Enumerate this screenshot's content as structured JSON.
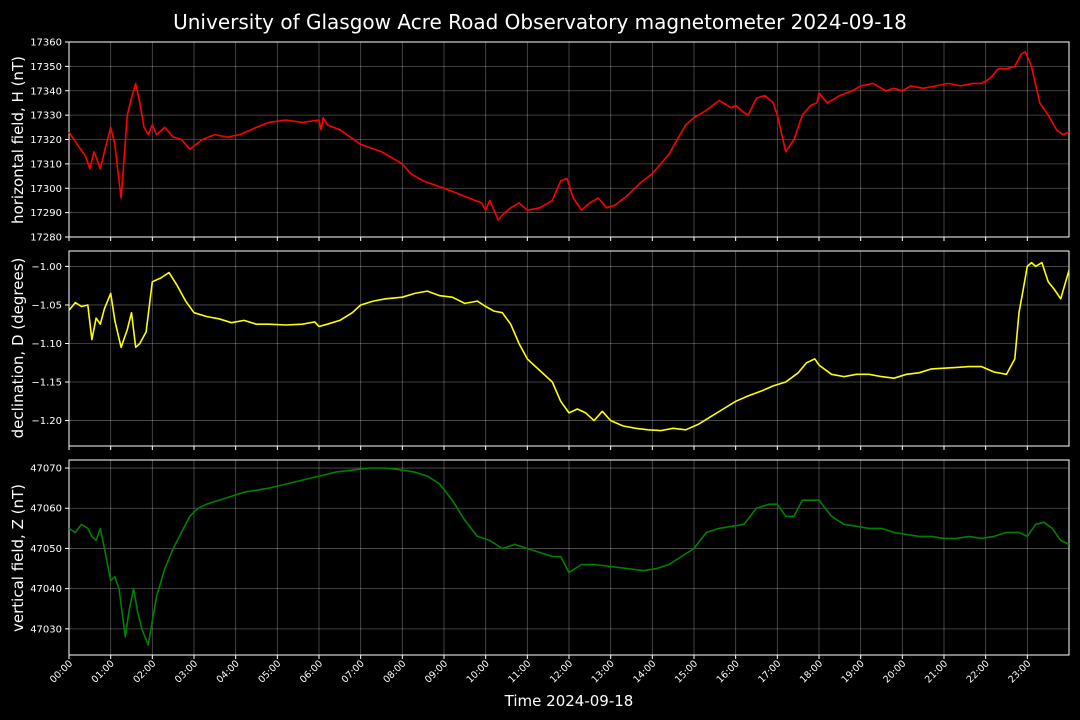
{
  "figure": {
    "title": "University of Glasgow Acre Road Observatory magnetometer 2024-09-18",
    "background": "#000000",
    "xlabel": "Time 2024-09-18"
  },
  "chart_data": [
    {
      "type": "line",
      "ylabel": "horizontal field, H (nT)",
      "color": "#ff0000",
      "ylim": [
        17280,
        17360
      ],
      "yticks": [
        "17280",
        "17290",
        "17300",
        "17310",
        "17320",
        "17330",
        "17340",
        "17350",
        "17360"
      ],
      "ytick_values": [
        17280,
        17290,
        17300,
        17310,
        17320,
        17330,
        17340,
        17350,
        17360
      ],
      "xlim": [
        0,
        24
      ],
      "grid": true,
      "x": [
        0,
        0.2,
        0.4,
        0.5,
        0.6,
        0.75,
        0.85,
        1.0,
        1.1,
        1.25,
        1.4,
        1.5,
        1.6,
        1.7,
        1.8,
        1.9,
        2.0,
        2.1,
        2.3,
        2.5,
        2.7,
        2.9,
        3.2,
        3.5,
        3.8,
        4.1,
        4.5,
        4.8,
        5.2,
        5.6,
        6.0,
        6.05,
        6.1,
        6.2,
        6.5,
        7.0,
        7.5,
        8.0,
        8.2,
        8.5,
        9.0,
        9.3,
        9.6,
        9.9,
        10.0,
        10.1,
        10.3,
        10.4,
        10.6,
        10.8,
        11.0,
        11.3,
        11.6,
        11.8,
        11.95,
        12.1,
        12.3,
        12.5,
        12.7,
        12.9,
        13.1,
        13.4,
        13.7,
        14.0,
        14.2,
        14.4,
        14.6,
        14.8,
        15.0,
        15.3,
        15.6,
        15.9,
        16.0,
        16.2,
        16.3,
        16.5,
        16.7,
        16.9,
        17.0,
        17.2,
        17.4,
        17.6,
        17.8,
        17.95,
        18.0,
        18.2,
        18.5,
        18.8,
        19.0,
        19.3,
        19.6,
        19.8,
        20.0,
        20.2,
        20.5,
        20.8,
        21.1,
        21.4,
        21.7,
        21.9,
        22.1,
        22.3,
        22.5,
        22.7,
        22.85,
        22.95,
        23.1,
        23.3,
        23.5,
        23.7,
        23.85,
        24.0
      ],
      "values": [
        17323,
        17318,
        17313,
        17308,
        17315,
        17308,
        17315,
        17325,
        17318,
        17296,
        17330,
        17337,
        17343,
        17335,
        17325,
        17322,
        17326,
        17322,
        17325,
        17321,
        17320,
        17316,
        17320,
        17322,
        17321,
        17322,
        17325,
        17327,
        17328,
        17327,
        17328,
        17324,
        17329,
        17326,
        17324,
        17318,
        17315,
        17310,
        17306,
        17303,
        17300,
        17298,
        17296,
        17294,
        17291,
        17295,
        17287,
        17289,
        17292,
        17294,
        17291,
        17292,
        17295,
        17303,
        17304,
        17296,
        17291,
        17294,
        17296,
        17292,
        17293,
        17297,
        17302,
        17306,
        17310,
        17314,
        17320,
        17326,
        17329,
        17332,
        17336,
        17333,
        17334,
        17331,
        17330,
        17337,
        17338,
        17335,
        17330,
        17315,
        17320,
        17330,
        17334,
        17335,
        17339,
        17335,
        17338,
        17340,
        17342,
        17343,
        17340,
        17341,
        17340,
        17342,
        17341,
        17342,
        17343,
        17342,
        17343,
        17343,
        17345,
        17349,
        17349,
        17350,
        17355,
        17356,
        17350,
        17335,
        17330,
        17324,
        17322,
        17323
      ]
    },
    {
      "type": "line",
      "ylabel": "declination, D (degrees)",
      "color": "#ffff00",
      "ylim": [
        -1.233,
        -0.98
      ],
      "yticks": [
        "−1.20",
        "−1.15",
        "−1.10",
        "−1.05",
        "−1.00"
      ],
      "ytick_values": [
        -1.2,
        -1.15,
        -1.1,
        -1.05,
        -1.0
      ],
      "xlim": [
        0,
        24
      ],
      "grid": true,
      "x": [
        0,
        0.15,
        0.3,
        0.45,
        0.55,
        0.65,
        0.75,
        0.85,
        1.0,
        1.1,
        1.25,
        1.4,
        1.5,
        1.6,
        1.7,
        1.85,
        2.0,
        2.2,
        2.4,
        2.6,
        2.8,
        3.0,
        3.3,
        3.6,
        3.9,
        4.2,
        4.5,
        4.8,
        5.2,
        5.6,
        5.9,
        6.0,
        6.2,
        6.5,
        6.8,
        7.0,
        7.3,
        7.6,
        8.0,
        8.3,
        8.6,
        8.9,
        9.2,
        9.5,
        9.8,
        10.0,
        10.2,
        10.4,
        10.6,
        10.8,
        11.0,
        11.3,
        11.6,
        11.8,
        12.0,
        12.2,
        12.4,
        12.6,
        12.8,
        13.0,
        13.3,
        13.6,
        13.9,
        14.2,
        14.5,
        14.8,
        15.1,
        15.4,
        15.7,
        16.0,
        16.3,
        16.6,
        16.9,
        17.2,
        17.5,
        17.7,
        17.9,
        18.0,
        18.3,
        18.6,
        18.9,
        19.2,
        19.5,
        19.8,
        20.1,
        20.4,
        20.7,
        21.0,
        21.3,
        21.6,
        21.9,
        22.2,
        22.5,
        22.7,
        22.8,
        22.9,
        23.0,
        23.1,
        23.2,
        23.35,
        23.5,
        23.65,
        23.8,
        24.0
      ],
      "values": [
        -1.057,
        -1.047,
        -1.052,
        -1.05,
        -1.095,
        -1.067,
        -1.075,
        -1.055,
        -1.035,
        -1.07,
        -1.105,
        -1.082,
        -1.06,
        -1.105,
        -1.1,
        -1.085,
        -1.02,
        -1.015,
        -1.008,
        -1.025,
        -1.045,
        -1.06,
        -1.065,
        -1.068,
        -1.073,
        -1.07,
        -1.075,
        -1.075,
        -1.076,
        -1.075,
        -1.072,
        -1.078,
        -1.075,
        -1.07,
        -1.06,
        -1.05,
        -1.045,
        -1.042,
        -1.04,
        -1.035,
        -1.032,
        -1.038,
        -1.04,
        -1.048,
        -1.045,
        -1.052,
        -1.058,
        -1.06,
        -1.075,
        -1.1,
        -1.12,
        -1.135,
        -1.15,
        -1.175,
        -1.19,
        -1.185,
        -1.19,
        -1.2,
        -1.188,
        -1.2,
        -1.207,
        -1.21,
        -1.212,
        -1.213,
        -1.21,
        -1.212,
        -1.205,
        -1.195,
        -1.185,
        -1.175,
        -1.168,
        -1.162,
        -1.155,
        -1.15,
        -1.138,
        -1.125,
        -1.12,
        -1.128,
        -1.14,
        -1.143,
        -1.14,
        -1.14,
        -1.143,
        -1.145,
        -1.14,
        -1.138,
        -1.133,
        -1.132,
        -1.131,
        -1.13,
        -1.13,
        -1.137,
        -1.14,
        -1.12,
        -1.06,
        -1.03,
        -1.0,
        -0.995,
        -1.0,
        -0.995,
        -1.02,
        -1.03,
        -1.042,
        -1.005
      ]
    },
    {
      "type": "line",
      "ylabel": "vertical field, Z (nT)",
      "color": "#008000",
      "ylim": [
        47023.5,
        47072
      ],
      "yticks": [
        "47030",
        "47040",
        "47050",
        "47060",
        "47070"
      ],
      "ytick_values": [
        47030,
        47040,
        47050,
        47060,
        47070
      ],
      "xlim": [
        0,
        24
      ],
      "grid": true,
      "x": [
        0,
        0.15,
        0.3,
        0.45,
        0.55,
        0.65,
        0.75,
        0.85,
        1.0,
        1.1,
        1.2,
        1.35,
        1.45,
        1.55,
        1.65,
        1.75,
        1.9,
        2.0,
        2.1,
        2.3,
        2.5,
        2.7,
        2.9,
        3.1,
        3.3,
        3.6,
        3.9,
        4.2,
        4.5,
        4.8,
        5.2,
        5.6,
        6.0,
        6.4,
        6.8,
        7.2,
        7.6,
        8.0,
        8.3,
        8.6,
        8.9,
        9.2,
        9.5,
        9.8,
        10.1,
        10.4,
        10.7,
        11.0,
        11.3,
        11.6,
        11.8,
        12.0,
        12.3,
        12.6,
        13.0,
        13.4,
        13.8,
        14.1,
        14.4,
        14.7,
        15.0,
        15.3,
        15.6,
        15.9,
        16.2,
        16.5,
        16.8,
        17.0,
        17.2,
        17.4,
        17.6,
        17.8,
        18.0,
        18.3,
        18.6,
        18.9,
        19.2,
        19.5,
        19.8,
        20.1,
        20.4,
        20.7,
        21.0,
        21.3,
        21.6,
        21.9,
        22.2,
        22.5,
        22.8,
        23.0,
        23.2,
        23.4,
        23.6,
        23.8,
        24.0
      ],
      "values": [
        47055,
        47054,
        47056,
        47055,
        47053,
        47052,
        47055,
        47050,
        47042,
        47043,
        47040,
        47028,
        47035,
        47040,
        47034,
        47030,
        47026,
        47032,
        47038,
        47045,
        47050,
        47054,
        47058,
        47060,
        47061,
        47062,
        47063,
        47064,
        47064.5,
        47065,
        47066,
        47067,
        47068,
        47069,
        47069.5,
        47070,
        47070,
        47069.5,
        47069,
        47068,
        47066,
        47062,
        47057,
        47053,
        47052,
        47050,
        47051,
        47050,
        47049,
        47048,
        47048,
        47044,
        47046,
        47046,
        47045.5,
        47045,
        47044.5,
        47045,
        47046,
        47048,
        47050,
        47054,
        47055,
        47055.5,
        47056,
        47060,
        47061,
        47061,
        47058,
        47058,
        47062,
        47062,
        47062,
        47058,
        47056,
        47055.5,
        47055,
        47055,
        47054,
        47053.5,
        47053,
        47053,
        47052.5,
        47052.5,
        47053,
        47052.5,
        47053,
        47054,
        47054,
        47053,
        47056,
        47056.5,
        47055,
        47052,
        47051
      ]
    }
  ],
  "xticks": [
    "00:00",
    "01:00",
    "02:00",
    "03:00",
    "04:00",
    "05:00",
    "06:00",
    "07:00",
    "08:00",
    "09:00",
    "10:00",
    "11:00",
    "12:00",
    "13:00",
    "14:00",
    "15:00",
    "16:00",
    "17:00",
    "18:00",
    "19:00",
    "20:00",
    "21:00",
    "22:00",
    "23:00"
  ]
}
